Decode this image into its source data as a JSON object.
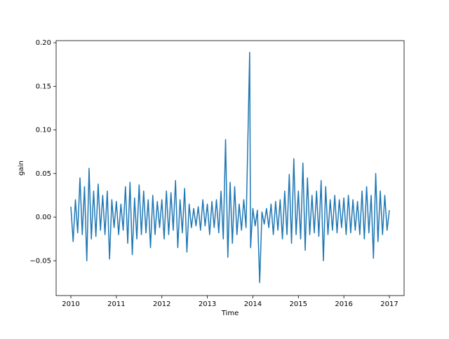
{
  "chart_data": {
    "type": "line",
    "xlabel": "Time",
    "ylabel": "gain",
    "xlim": [
      2009.676,
      2017.324
    ],
    "xticks": [
      2010,
      2011,
      2012,
      2013,
      2014,
      2015,
      2016,
      2017
    ],
    "ylim": [
      -0.0899,
      0.2024
    ],
    "yticks": [
      {
        "value": -0.05,
        "label": "−0.05"
      },
      {
        "value": 0,
        "label": "0.00"
      },
      {
        "value": 0.05,
        "label": "0.05"
      },
      {
        "value": 0.1,
        "label": "0.10"
      },
      {
        "value": 0.15,
        "label": "0.15"
      },
      {
        "value": 0.2,
        "label": "0.20"
      }
    ],
    "x": [
      2010,
      2010.05,
      2010.1,
      2010.15,
      2010.2,
      2010.25,
      2010.3,
      2010.35,
      2010.4,
      2010.45,
      2010.5,
      2010.55,
      2010.6,
      2010.65,
      2010.7,
      2010.75,
      2010.8,
      2010.85,
      2010.9,
      2010.95,
      2011,
      2011.05,
      2011.1,
      2011.15,
      2011.2,
      2011.25,
      2011.3,
      2011.35,
      2011.4,
      2011.45,
      2011.5,
      2011.55,
      2011.6,
      2011.65,
      2011.7,
      2011.75,
      2011.8,
      2011.85,
      2011.9,
      2011.95,
      2012,
      2012.05,
      2012.1,
      2012.15,
      2012.2,
      2012.25,
      2012.3,
      2012.35,
      2012.4,
      2012.45,
      2012.5,
      2012.55,
      2012.6,
      2012.65,
      2012.7,
      2012.75,
      2012.8,
      2012.85,
      2012.9,
      2012.95,
      2013,
      2013.05,
      2013.1,
      2013.15,
      2013.2,
      2013.25,
      2013.3,
      2013.35,
      2013.4,
      2013.45,
      2013.5,
      2013.55,
      2013.6,
      2013.65,
      2013.7,
      2013.75,
      2013.8,
      2013.85,
      2013.93,
      2013.95,
      2014,
      2014.05,
      2014.1,
      2014.15,
      2014.2,
      2014.25,
      2014.3,
      2014.35,
      2014.4,
      2014.45,
      2014.5,
      2014.55,
      2014.6,
      2014.65,
      2014.7,
      2014.75,
      2014.8,
      2014.85,
      2014.9,
      2014.95,
      2015,
      2015.05,
      2015.1,
      2015.15,
      2015.2,
      2015.25,
      2015.3,
      2015.35,
      2015.4,
      2015.45,
      2015.5,
      2015.55,
      2015.6,
      2015.65,
      2015.7,
      2015.75,
      2015.8,
      2015.85,
      2015.9,
      2015.95,
      2016,
      2016.05,
      2016.1,
      2016.15,
      2016.2,
      2016.25,
      2016.3,
      2016.35,
      2016.4,
      2016.45,
      2016.5,
      2016.55,
      2016.6,
      2016.65,
      2016.7,
      2016.75,
      2016.8,
      2016.85,
      2016.9,
      2016.95,
      2017
    ],
    "series": [
      {
        "color": "#1f77b4",
        "values": [
          0.012,
          -0.028,
          0.02,
          -0.018,
          0.045,
          -0.02,
          0.035,
          -0.05,
          0.056,
          -0.025,
          0.03,
          -0.022,
          0.038,
          -0.015,
          0.025,
          -0.02,
          0.03,
          -0.048,
          0.02,
          -0.012,
          0.018,
          -0.02,
          0.015,
          -0.015,
          0.035,
          -0.03,
          0.04,
          -0.043,
          0.022,
          -0.025,
          0.037,
          -0.02,
          0.03,
          -0.018,
          0.02,
          -0.035,
          0.025,
          -0.02,
          0.018,
          -0.012,
          0.02,
          -0.025,
          0.03,
          -0.02,
          0.028,
          -0.015,
          0.042,
          -0.035,
          0.02,
          -0.018,
          0.033,
          -0.04,
          0.015,
          -0.012,
          0.01,
          -0.01,
          0.012,
          -0.015,
          0.02,
          -0.01,
          0.015,
          -0.02,
          0.018,
          -0.012,
          0.02,
          -0.018,
          0.03,
          -0.025,
          0.089,
          -0.046,
          0.04,
          -0.03,
          0.035,
          -0.02,
          0.015,
          -0.015,
          0.02,
          -0.012,
          0.189,
          -0.035,
          0.01,
          -0.01,
          0.008,
          -0.075,
          0.006,
          -0.008,
          0.01,
          -0.012,
          0.015,
          -0.02,
          0.018,
          -0.015,
          0.02,
          -0.025,
          0.03,
          -0.02,
          0.049,
          -0.03,
          0.067,
          -0.02,
          0.03,
          -0.025,
          0.062,
          -0.038,
          0.045,
          -0.02,
          0.025,
          -0.018,
          0.03,
          -0.022,
          0.042,
          -0.05,
          0.035,
          -0.02,
          0.02,
          -0.015,
          0.025,
          -0.018,
          0.02,
          -0.012,
          0.022,
          -0.02,
          0.025,
          -0.018,
          0.02,
          -0.015,
          0.018,
          -0.02,
          0.03,
          -0.025,
          0.035,
          -0.018,
          0.025,
          -0.047,
          0.05,
          -0.028,
          0.03,
          -0.02,
          0.025,
          -0.015,
          0.008
        ]
      }
    ]
  }
}
